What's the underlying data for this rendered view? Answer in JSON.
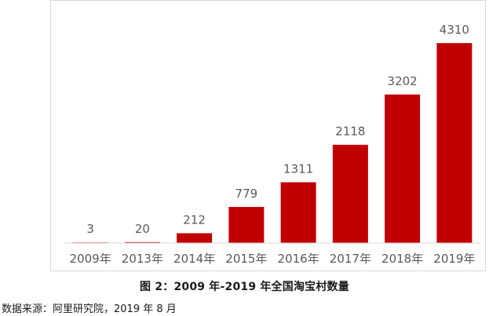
{
  "chart_data": {
    "type": "bar",
    "categories": [
      "2009年",
      "2013年",
      "2014年",
      "2015年",
      "2016年",
      "2017年",
      "2018年",
      "2019年"
    ],
    "values": [
      3,
      20,
      212,
      779,
      1311,
      2118,
      3202,
      4310
    ],
    "value_labels": [
      "3",
      "20",
      "212",
      "779",
      "1311",
      "2118",
      "3202",
      "4310"
    ],
    "title": "图 2：2009 年-2019 年全国淘宝村数量",
    "xlabel": "",
    "ylabel": "",
    "ylim": [
      0,
      4500
    ],
    "bar_color": "#c00000",
    "grid": false,
    "legend": "none"
  },
  "caption": "图 2：2009 年-2019 年全国淘宝村数量",
  "source": "数据来源：阿里研究院，2019 年 8 月"
}
